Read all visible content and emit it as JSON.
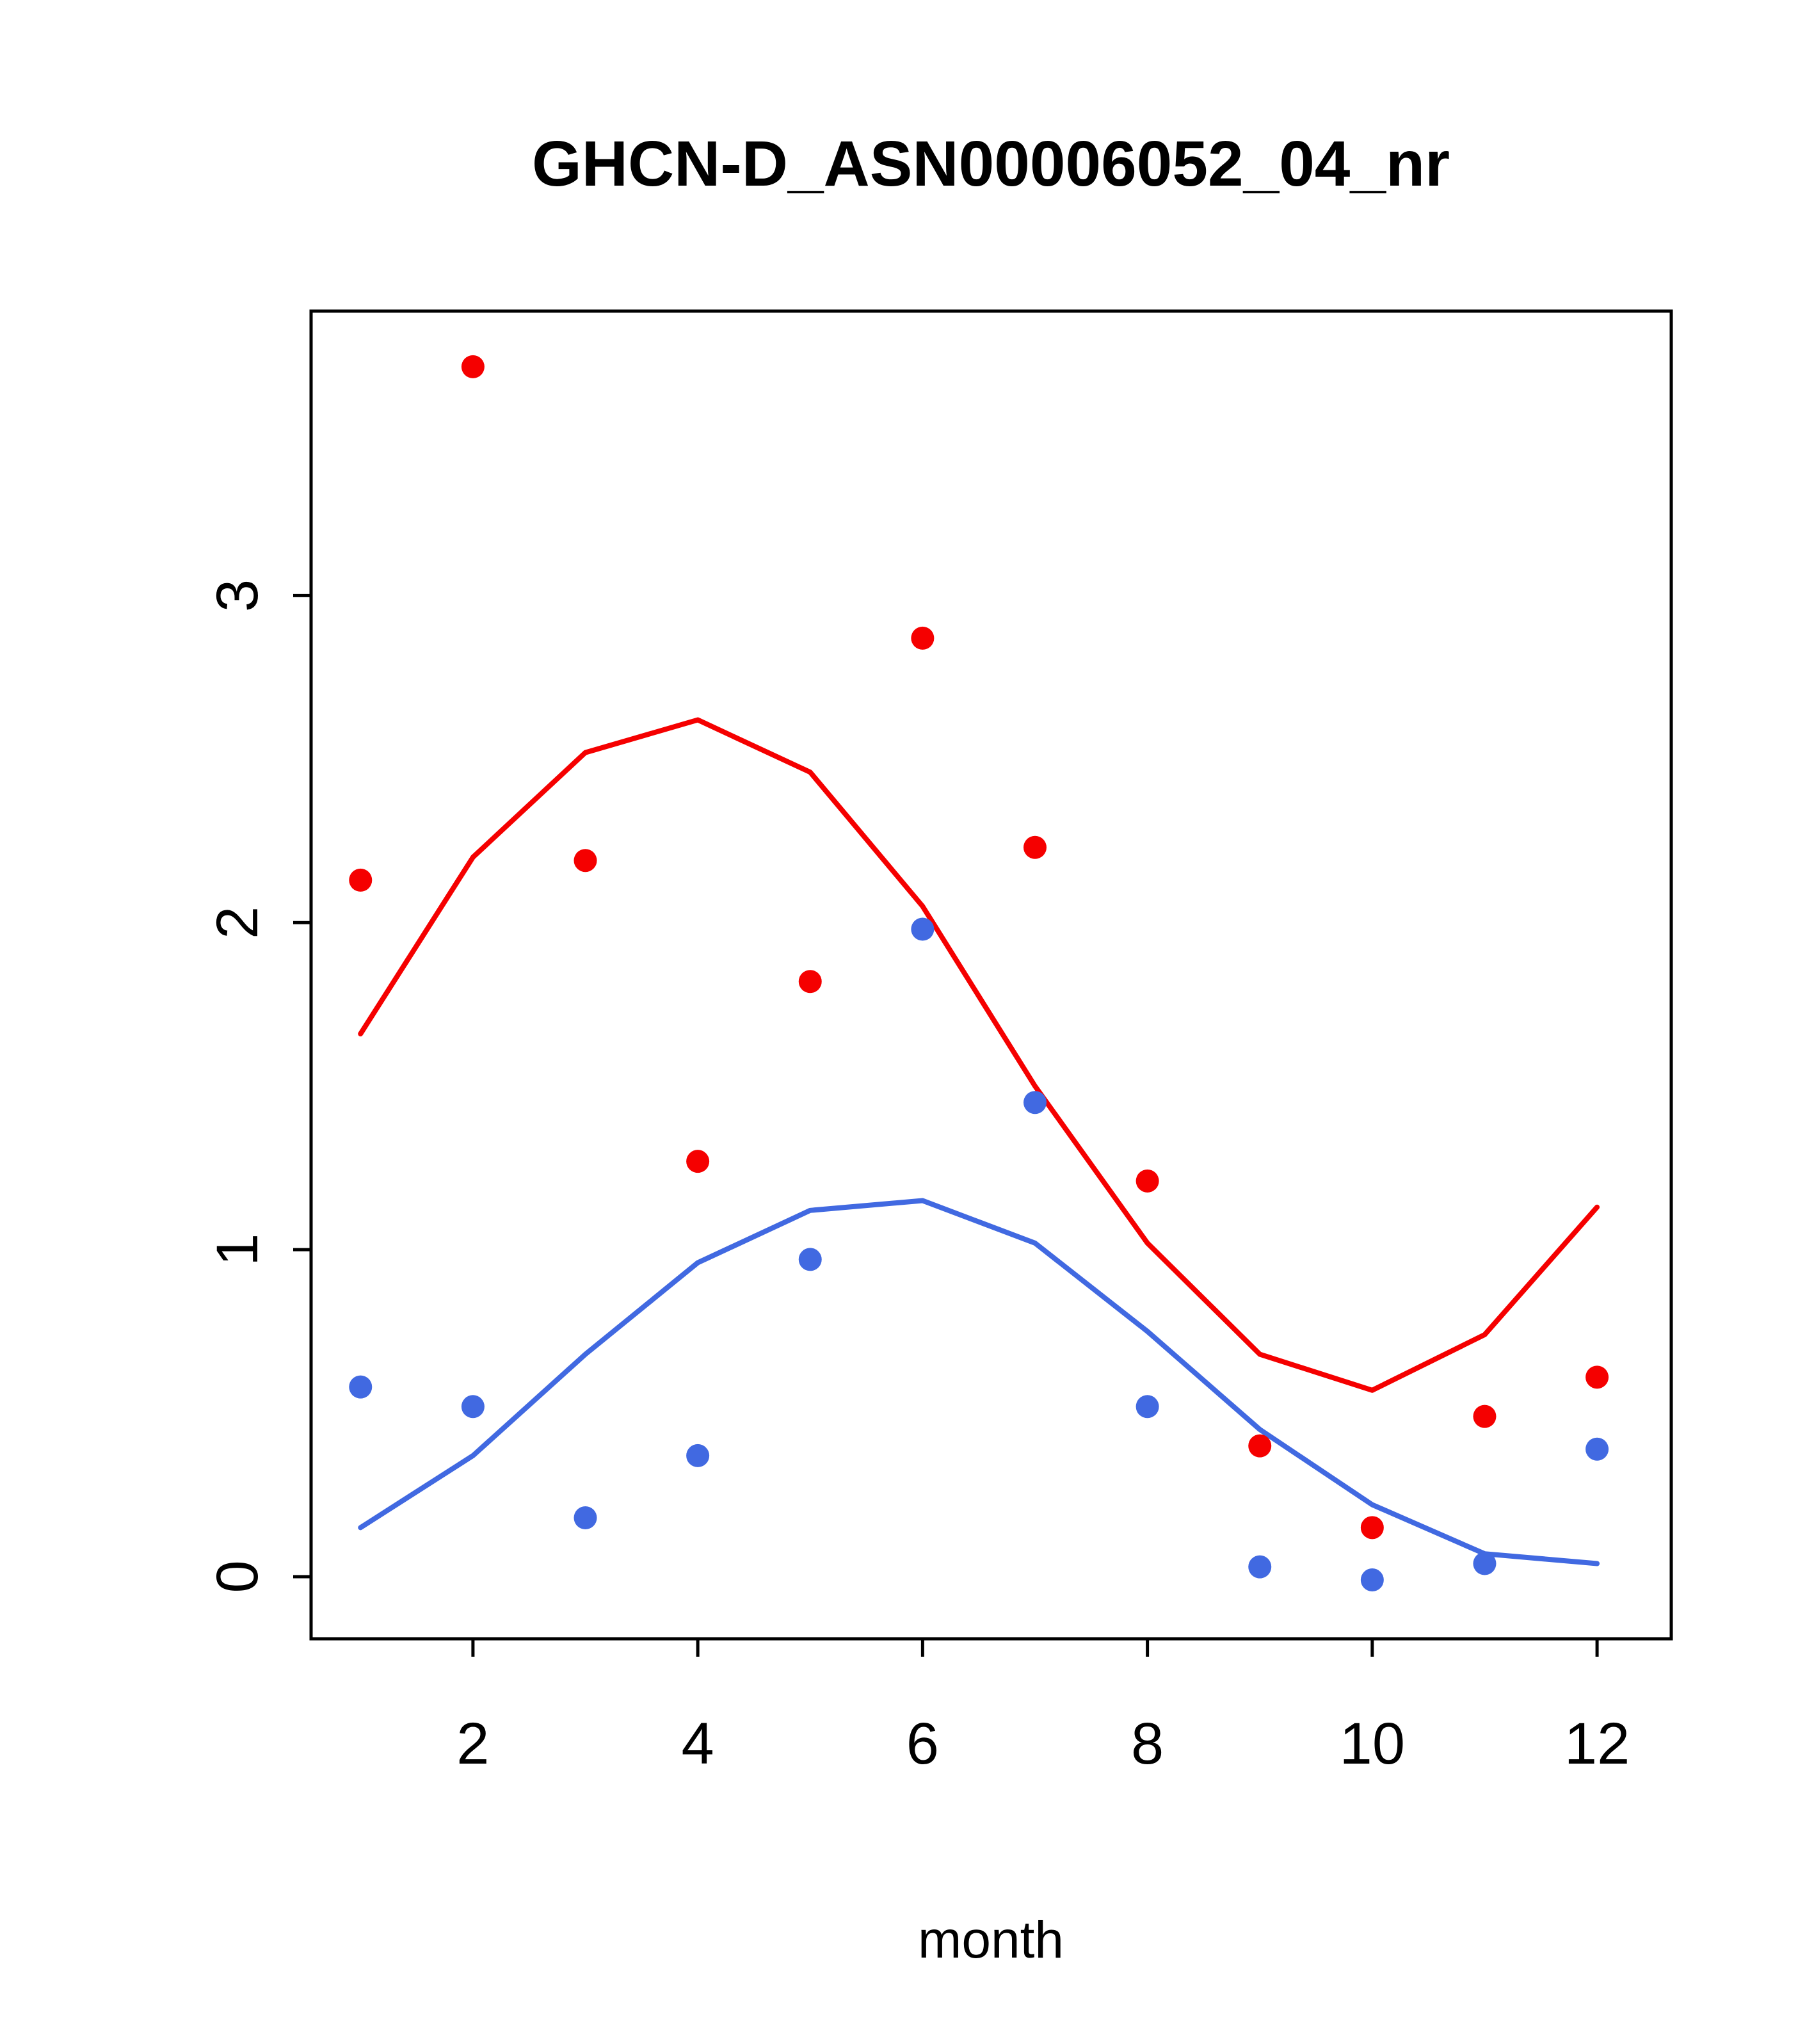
{
  "title": "GHCN-D_ASN00006052_04_nr",
  "chart_data": {
    "type": "scatter",
    "title": "GHCN-D_ASN00006052_04_nr",
    "xlabel": "month",
    "ylabel": "",
    "xlim": [
      0.56,
      12.66
    ],
    "ylim": [
      -0.19,
      3.87
    ],
    "x_ticks": [
      2,
      4,
      6,
      8,
      10,
      12
    ],
    "y_ticks": [
      0,
      1,
      2,
      3
    ],
    "grid": false,
    "legend": "none",
    "colors": {
      "red": "#f50000",
      "blue": "#4169e1"
    },
    "x": [
      1,
      2,
      3,
      4,
      5,
      6,
      7,
      8,
      9,
      10,
      11,
      12
    ],
    "series": [
      {
        "name": "red-points",
        "type": "points",
        "color": "#f50000",
        "values": [
          2.13,
          3.7,
          2.19,
          1.27,
          1.82,
          2.87,
          2.23,
          1.21,
          0.4,
          0.15,
          0.49,
          0.61
        ]
      },
      {
        "name": "blue-points",
        "type": "points",
        "color": "#4169e1",
        "values": [
          0.58,
          0.52,
          0.18,
          0.37,
          0.97,
          1.98,
          1.45,
          0.52,
          0.03,
          -0.01,
          0.04,
          0.39
        ]
      },
      {
        "name": "red-smooth-line",
        "type": "line",
        "color": "#f50000",
        "values": [
          1.66,
          2.2,
          2.52,
          2.62,
          2.46,
          2.05,
          1.5,
          1.02,
          0.68,
          0.57,
          0.74,
          1.13
        ]
      },
      {
        "name": "blue-smooth-line",
        "type": "line",
        "color": "#4169e1",
        "values": [
          0.15,
          0.37,
          0.68,
          0.96,
          1.12,
          1.15,
          1.02,
          0.75,
          0.45,
          0.22,
          0.07,
          0.04
        ]
      }
    ]
  }
}
